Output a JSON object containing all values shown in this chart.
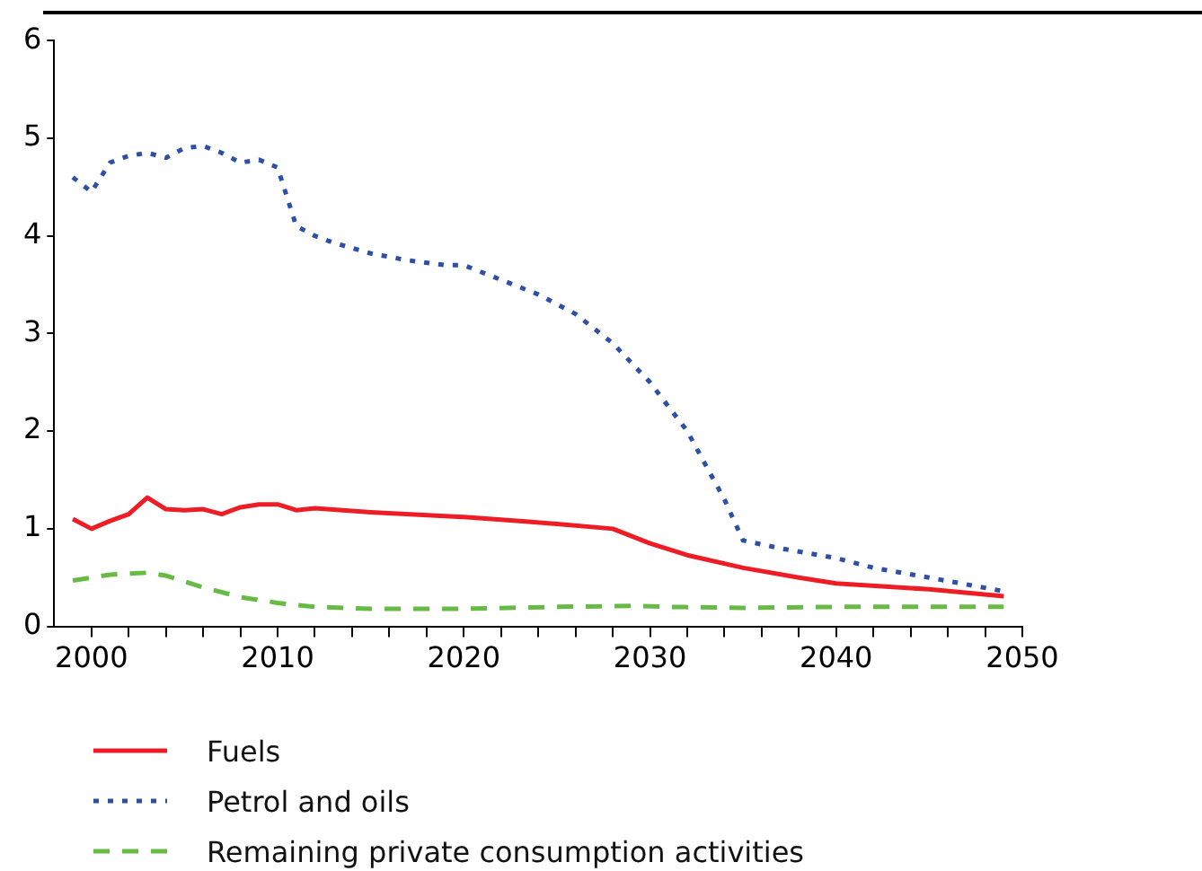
{
  "chart_data": {
    "type": "line",
    "xlim": [
      1998,
      2050
    ],
    "xticks": [
      2000,
      {
        "value": 2002,
        "label": null
      },
      {
        "value": 2004,
        "label": null
      },
      {
        "value": 2006,
        "label": null
      },
      {
        "value": 2008,
        "label": null
      },
      2010,
      {
        "value": 2012,
        "label": null
      },
      {
        "value": 2014,
        "label": null
      },
      {
        "value": 2016,
        "label": null
      },
      {
        "value": 2018,
        "label": null
      },
      2020,
      {
        "value": 2022,
        "label": null
      },
      {
        "value": 2024,
        "label": null
      },
      {
        "value": 2026,
        "label": null
      },
      {
        "value": 2028,
        "label": null
      },
      2030,
      {
        "value": 2032,
        "label": null
      },
      {
        "value": 2034,
        "label": null
      },
      {
        "value": 2036,
        "label": null
      },
      {
        "value": 2038,
        "label": null
      },
      2040,
      {
        "value": 2042,
        "label": null
      },
      {
        "value": 2044,
        "label": null
      },
      {
        "value": 2046,
        "label": null
      },
      {
        "value": 2048,
        "label": null
      },
      2050
    ],
    "ylim": [
      0,
      6
    ],
    "yticks": [
      0,
      1,
      2,
      3,
      4,
      5,
      6
    ],
    "grid": false,
    "legend": "bottom",
    "marker": "none",
    "series": [
      {
        "name": "Fuels",
        "color": "#ee1c25",
        "line_style": "solid",
        "x": [
          1999,
          2000,
          2001,
          2002,
          2003,
          2004,
          2005,
          2006,
          2007,
          2008,
          2009,
          2010,
          2011,
          2012,
          2015,
          2020,
          2023,
          2025,
          2028,
          2030,
          2032,
          2035,
          2038,
          2040,
          2045,
          2049
        ],
        "values": [
          1.1,
          1.0,
          1.08,
          1.15,
          1.32,
          1.2,
          1.19,
          1.2,
          1.15,
          1.22,
          1.25,
          1.25,
          1.19,
          1.21,
          1.17,
          1.12,
          1.08,
          1.05,
          1.0,
          0.85,
          0.73,
          0.6,
          0.5,
          0.44,
          0.38,
          0.31
        ]
      },
      {
        "name": "Petrol and oils",
        "color": "#2e4fa8",
        "line_style": "dotted",
        "x": [
          1999,
          2000,
          2001,
          2002,
          2003,
          2004,
          2005,
          2006,
          2007,
          2008,
          2009,
          2010,
          2011,
          2012,
          2013,
          2015,
          2017,
          2019,
          2020,
          2022,
          2024,
          2026,
          2028,
          2030,
          2032,
          2034,
          2035,
          2037,
          2040,
          2042,
          2045,
          2049
        ],
        "values": [
          4.6,
          4.45,
          4.75,
          4.82,
          4.85,
          4.8,
          4.9,
          4.92,
          4.85,
          4.75,
          4.78,
          4.7,
          4.1,
          4.0,
          3.93,
          3.82,
          3.75,
          3.7,
          3.7,
          3.55,
          3.4,
          3.2,
          2.9,
          2.5,
          2.0,
          1.3,
          0.88,
          0.8,
          0.7,
          0.6,
          0.5,
          0.36
        ]
      },
      {
        "name": "Remaining private consumption activities",
        "color": "#66bb44",
        "line_style": "dashed",
        "x": [
          1999,
          2001,
          2003,
          2004,
          2006,
          2008,
          2010,
          2012,
          2015,
          2020,
          2025,
          2029,
          2031,
          2035,
          2040,
          2049
        ],
        "values": [
          0.47,
          0.53,
          0.55,
          0.52,
          0.4,
          0.3,
          0.24,
          0.2,
          0.18,
          0.18,
          0.2,
          0.21,
          0.2,
          0.19,
          0.2,
          0.2
        ]
      }
    ]
  }
}
